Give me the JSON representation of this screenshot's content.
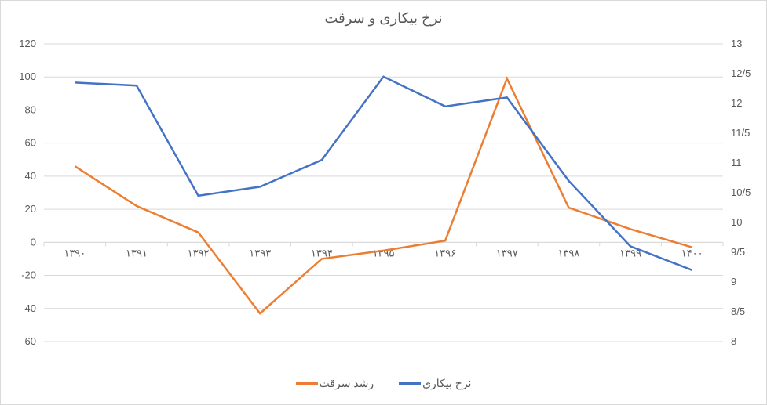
{
  "chart": {
    "type": "line",
    "title": "نرخ بیکاری و سرقت",
    "title_fontsize": 18,
    "background_color": "#ffffff",
    "border_color": "#d9d9d9",
    "text_color": "#595959",
    "grid_color": "#d9d9d9",
    "categories": [
      "۱۳۹۰",
      "۱۳۹۱",
      "۱۳۹۲",
      "۱۳۹۳",
      "۱۳۹۴",
      "۱۳۹۵",
      "۱۳۹۶",
      "۱۳۹۷",
      "۱۳۹۸",
      "۱۳۹۹",
      "۱۴۰۰"
    ],
    "left_axis": {
      "min": -60,
      "max": 120,
      "step": 20,
      "ticks": [
        -60,
        -40,
        -20,
        0,
        20,
        40,
        60,
        80,
        100,
        120
      ],
      "tick_labels": [
        "-60",
        "-40",
        "-20",
        "0",
        "20",
        "40",
        "60",
        "80",
        "100",
        "120"
      ]
    },
    "right_axis": {
      "min": 8,
      "max": 13,
      "step": 0.5,
      "ticks": [
        8,
        8.5,
        9,
        9.5,
        10,
        10.5,
        11,
        11.5,
        12,
        12.5,
        13
      ],
      "tick_labels": [
        "8",
        "8/5",
        "9",
        "9/5",
        "10",
        "10/5",
        "11",
        "11/5",
        "12",
        "12.5",
        "13"
      ],
      "tick_labels_fa": [
        "8",
        "8/5",
        "9",
        "9/5",
        "10",
        "10/5",
        "11",
        "11/5",
        "12",
        "12/5",
        "13"
      ]
    },
    "series": [
      {
        "name": "رشد سرقت",
        "color": "#ed7d31",
        "axis": "left",
        "values": [
          46,
          22,
          6,
          -43,
          -10,
          -5,
          1,
          99,
          21,
          8,
          -3
        ]
      },
      {
        "name": "نرخ بیکاری",
        "color": "#4472c4",
        "axis": "right",
        "values": [
          12.35,
          12.3,
          10.45,
          10.6,
          11.05,
          12.45,
          11.95,
          12.1,
          10.7,
          9.6,
          9.2
        ]
      }
    ],
    "legend": {
      "position": "bottom",
      "items": [
        "رشد سرقت",
        "نرخ بیکاری"
      ]
    },
    "axis_label_fontsize": 13,
    "legend_fontsize": 14,
    "line_width": 2.5
  }
}
